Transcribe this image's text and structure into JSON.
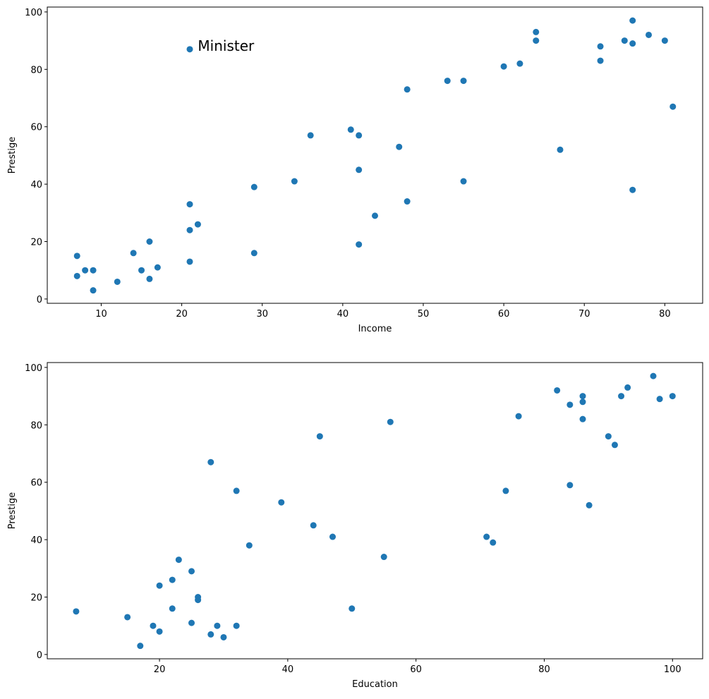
{
  "colors": {
    "marker": "#1f77b4",
    "axes": "#000000"
  },
  "chart_data": [
    {
      "type": "scatter",
      "xlabel": "Income",
      "ylabel": "Prestige",
      "xlim": [
        3.3,
        84.7
      ],
      "ylim": [
        -1.5,
        101.7
      ],
      "xticks": [
        10,
        20,
        30,
        40,
        50,
        60,
        70,
        80
      ],
      "yticks": [
        0,
        20,
        40,
        60,
        80,
        100
      ],
      "grid": false,
      "annotations": [
        {
          "text": "Minister",
          "x": 22,
          "y": 88
        }
      ],
      "x": [
        62,
        72,
        75,
        55,
        64,
        21,
        64,
        80,
        67,
        72,
        42,
        76,
        76,
        41,
        48,
        76,
        53,
        60,
        42,
        78,
        29,
        48,
        55,
        29,
        21,
        47,
        81,
        36,
        22,
        44,
        15,
        7,
        42,
        9,
        21,
        21,
        16,
        16,
        9,
        14,
        12,
        17,
        7,
        34,
        8
      ],
      "y": [
        82,
        83,
        90,
        76,
        90,
        87,
        93,
        90,
        52,
        88,
        57,
        89,
        97,
        59,
        73,
        38,
        76,
        81,
        45,
        92,
        39,
        34,
        41,
        16,
        33,
        53,
        67,
        57,
        26,
        29,
        10,
        15,
        19,
        10,
        13,
        24,
        20,
        7,
        3,
        16,
        6,
        11,
        8,
        41,
        10
      ]
    },
    {
      "type": "scatter",
      "xlabel": "Education",
      "ylabel": "Prestige",
      "xlim": [
        2.5,
        104.7
      ],
      "ylim": [
        -1.5,
        101.7
      ],
      "xticks": [
        20,
        40,
        60,
        80,
        100
      ],
      "yticks": [
        0,
        20,
        40,
        60,
        80,
        100
      ],
      "grid": false,
      "x": [
        86,
        76,
        92,
        90,
        86,
        84,
        93,
        100,
        87,
        86,
        74,
        98,
        97,
        84,
        91,
        34,
        45,
        56,
        44,
        82,
        72,
        55,
        71,
        50,
        23,
        39,
        28,
        32,
        22,
        25,
        29,
        7,
        26,
        19,
        15,
        20,
        26,
        28,
        17,
        22,
        30,
        25,
        20,
        47,
        32
      ],
      "y": [
        82,
        83,
        90,
        76,
        90,
        87,
        93,
        90,
        52,
        88,
        57,
        89,
        97,
        59,
        73,
        38,
        76,
        81,
        45,
        92,
        39,
        34,
        41,
        16,
        33,
        53,
        67,
        57,
        26,
        29,
        10,
        15,
        19,
        10,
        13,
        24,
        20,
        7,
        3,
        16,
        6,
        11,
        8,
        41,
        10
      ]
    }
  ]
}
